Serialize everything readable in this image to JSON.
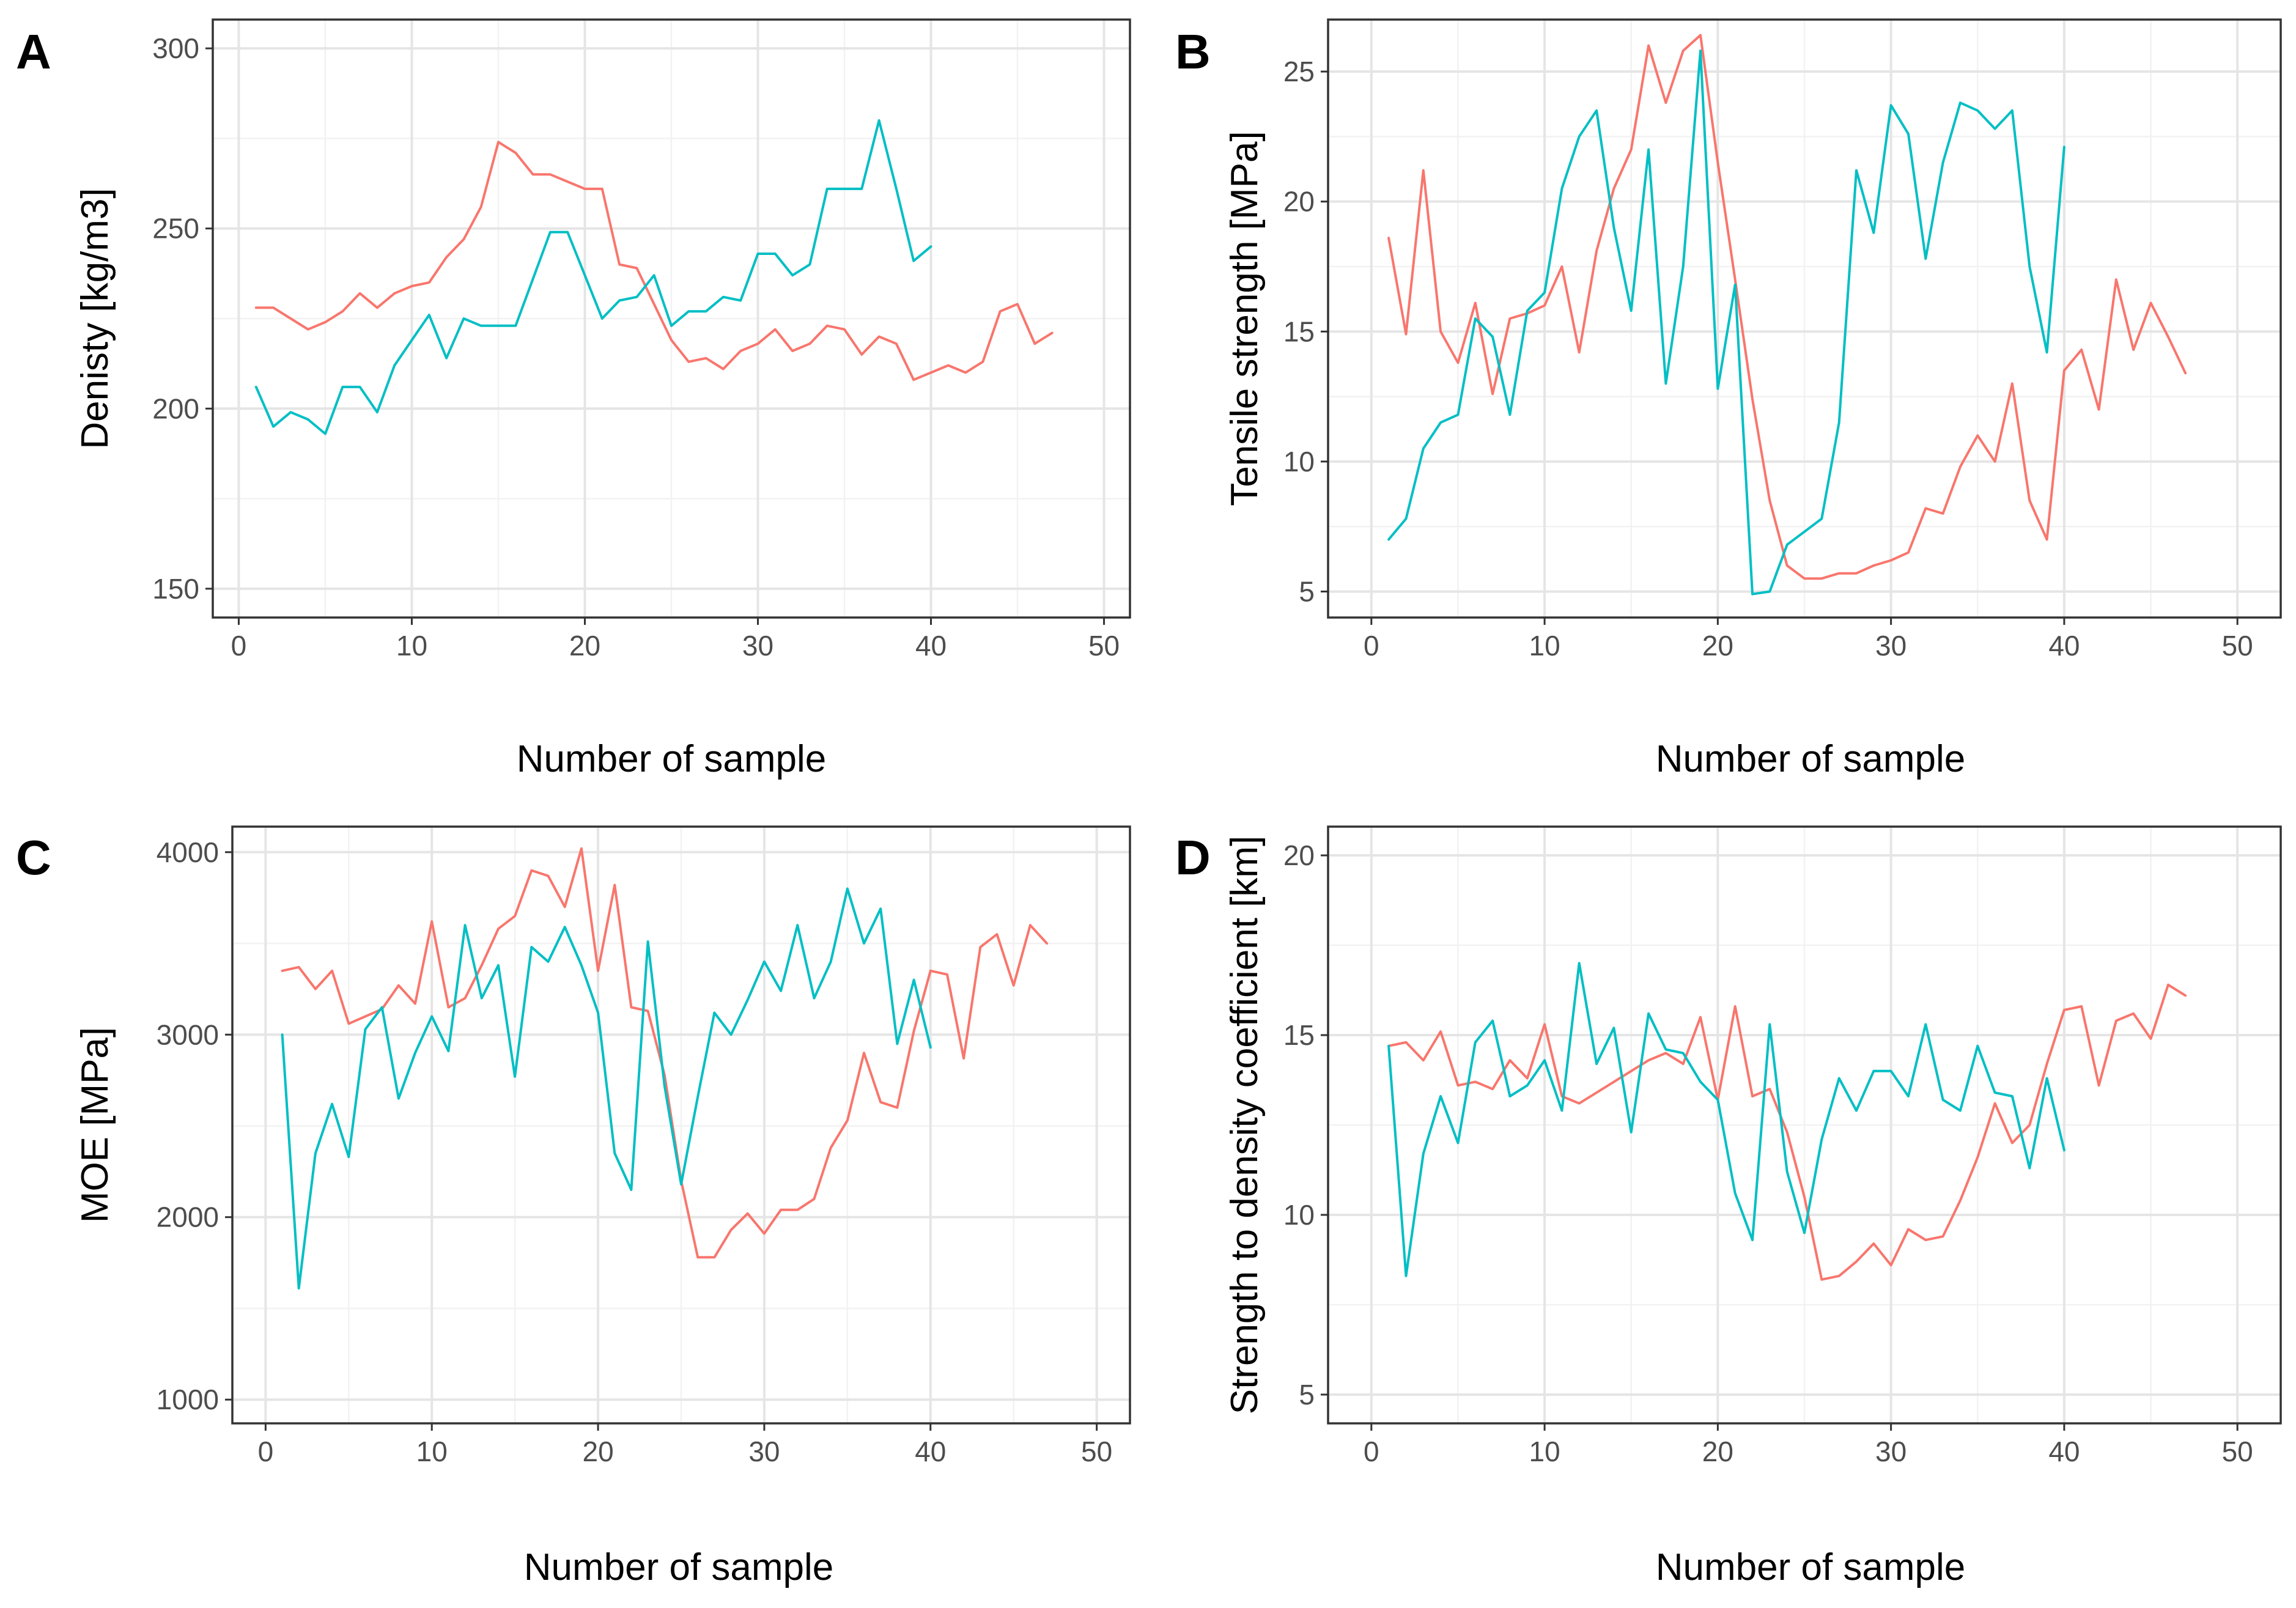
{
  "colors": {
    "series1": "#F8766D",
    "series2": "#00BFC4"
  },
  "chart_data": [
    {
      "panel": "A",
      "type": "line",
      "xlabel": "Number of sample",
      "ylabel": "Denisty [kg/m3]",
      "xlim": [
        -1.5,
        51.5
      ],
      "ylim": [
        142,
        308
      ],
      "xticks": [
        0,
        10,
        20,
        30,
        40,
        50
      ],
      "yticks": [
        150,
        200,
        250,
        300
      ],
      "series": [
        {
          "name": "series1",
          "x": [
            1,
            2,
            3,
            4,
            5,
            6,
            7,
            8,
            9,
            10,
            11,
            12,
            13,
            14,
            15,
            16,
            17,
            18,
            19,
            20,
            21,
            22,
            23,
            24,
            25,
            26,
            27,
            28,
            29,
            30,
            31,
            32,
            33,
            34,
            35,
            36,
            37,
            38,
            39,
            40,
            41,
            42,
            43,
            44,
            45,
            46,
            47
          ],
          "values": [
            228,
            228,
            225,
            222,
            224,
            227,
            232,
            228,
            232,
            234,
            235,
            242,
            247,
            256,
            274,
            271,
            265,
            265,
            263,
            261,
            261,
            240,
            239,
            229,
            219,
            213,
            214,
            211,
            216,
            218,
            222,
            216,
            218,
            223,
            222,
            215,
            220,
            218,
            208,
            210,
            212,
            210,
            213,
            227,
            229,
            218,
            221
          ]
        },
        {
          "name": "series2",
          "x": [
            1,
            2,
            3,
            4,
            5,
            6,
            7,
            8,
            9,
            10,
            11,
            12,
            13,
            14,
            15,
            16,
            17,
            18,
            19,
            20,
            21,
            22,
            23,
            24,
            25,
            26,
            27,
            28,
            29,
            30,
            31,
            32,
            33,
            34,
            35,
            36,
            37,
            38,
            39,
            40
          ],
          "values": [
            206,
            195,
            199,
            197,
            193,
            206,
            206,
            199,
            212,
            219,
            226,
            214,
            225,
            223,
            223,
            223,
            236,
            249,
            249,
            237,
            225,
            230,
            231,
            237,
            223,
            227,
            227,
            231,
            230,
            243,
            243,
            237,
            240,
            261,
            261,
            261,
            280,
            261,
            241,
            245
          ]
        }
      ]
    },
    {
      "panel": "B",
      "type": "line",
      "xlabel": "Number of sample",
      "ylabel": "Tensile strength  [MPa]",
      "xlim": [
        -2.5,
        52.5
      ],
      "ylim": [
        4,
        27
      ],
      "xticks": [
        0,
        10,
        20,
        30,
        40,
        50
      ],
      "yticks": [
        5,
        10,
        15,
        20,
        25
      ],
      "series": [
        {
          "name": "series1",
          "x": [
            1,
            2,
            3,
            4,
            5,
            6,
            7,
            8,
            9,
            10,
            11,
            12,
            13,
            14,
            15,
            16,
            17,
            18,
            19,
            20,
            21,
            22,
            23,
            24,
            25,
            26,
            27,
            28,
            29,
            30,
            31,
            32,
            33,
            34,
            35,
            36,
            37,
            38,
            39,
            40,
            41,
            42,
            43,
            44,
            45,
            46,
            47
          ],
          "values": [
            18.6,
            14.9,
            21.2,
            15.0,
            13.8,
            16.1,
            12.6,
            15.5,
            15.7,
            16.0,
            17.5,
            14.2,
            18.1,
            20.5,
            22.0,
            26.0,
            23.8,
            25.8,
            26.4,
            21.5,
            17.0,
            12.4,
            8.5,
            6.0,
            5.5,
            5.5,
            5.7,
            5.7,
            6.0,
            6.2,
            6.5,
            8.2,
            8.0,
            9.8,
            11.0,
            10.0,
            13.0,
            8.5,
            7.0,
            13.5,
            14.3,
            12.0,
            17.0,
            14.3,
            16.1,
            14.8,
            13.4
          ]
        },
        {
          "name": "series2",
          "x": [
            1,
            2,
            3,
            4,
            5,
            6,
            7,
            8,
            9,
            10,
            11,
            12,
            13,
            14,
            15,
            16,
            17,
            18,
            19,
            20,
            21,
            22,
            23,
            24,
            25,
            26,
            27,
            28,
            29,
            30,
            31,
            32,
            33,
            34,
            35,
            36,
            37,
            38,
            39,
            40
          ],
          "values": [
            7.0,
            7.8,
            10.5,
            11.5,
            11.8,
            15.5,
            14.8,
            11.8,
            15.8,
            16.5,
            20.5,
            22.5,
            23.5,
            19.0,
            15.8,
            22.0,
            13.0,
            17.5,
            25.8,
            12.8,
            16.8,
            4.9,
            5.0,
            6.8,
            7.3,
            7.8,
            11.5,
            21.2,
            18.8,
            23.7,
            22.6,
            17.8,
            21.5,
            23.8,
            23.5,
            22.8,
            23.5,
            17.5,
            14.2,
            22.1
          ]
        }
      ]
    },
    {
      "panel": "C",
      "type": "line",
      "xlabel": "Number of sample",
      "ylabel": "MOE [MPa]",
      "xlim": [
        -2,
        52
      ],
      "ylim": [
        870,
        4140
      ],
      "xticks": [
        0,
        10,
        20,
        30,
        40,
        50
      ],
      "yticks": [
        1000,
        2000,
        3000,
        4000
      ],
      "series": [
        {
          "name": "series1",
          "x": [
            1,
            2,
            3,
            4,
            5,
            6,
            7,
            8,
            9,
            10,
            11,
            12,
            13,
            14,
            15,
            16,
            17,
            18,
            19,
            20,
            21,
            22,
            23,
            24,
            25,
            26,
            27,
            28,
            29,
            30,
            31,
            32,
            33,
            34,
            35,
            36,
            37,
            38,
            39,
            40,
            41,
            42,
            43,
            44,
            45,
            46,
            47
          ],
          "values": [
            3350,
            3370,
            3250,
            3350,
            3060,
            3100,
            3140,
            3270,
            3170,
            3620,
            3150,
            3200,
            3380,
            3580,
            3650,
            3900,
            3870,
            3700,
            4020,
            3350,
            3820,
            3150,
            3130,
            2780,
            2200,
            1780,
            1780,
            1930,
            2020,
            1910,
            2040,
            2040,
            2100,
            2380,
            2530,
            2900,
            2630,
            2600,
            3020,
            3350,
            3330,
            2870,
            3480,
            3550,
            3270,
            3600,
            3500
          ]
        },
        {
          "name": "series2",
          "x": [
            1,
            2,
            3,
            4,
            5,
            6,
            7,
            8,
            9,
            10,
            11,
            12,
            13,
            14,
            15,
            16,
            17,
            18,
            19,
            20,
            21,
            22,
            23,
            24,
            25,
            26,
            27,
            28,
            29,
            30,
            31,
            32,
            33,
            34,
            35,
            36,
            37,
            38,
            39,
            40
          ],
          "values": [
            3000,
            1610,
            2350,
            2620,
            2330,
            3030,
            3150,
            2650,
            2900,
            3100,
            2910,
            3600,
            3200,
            3380,
            2770,
            3480,
            3400,
            3590,
            3380,
            3120,
            2350,
            2150,
            3510,
            2720,
            2180,
            2660,
            3120,
            3000,
            3190,
            3400,
            3240,
            3600,
            3200,
            3400,
            3800,
            3500,
            3690,
            2950,
            3300,
            2930
          ]
        }
      ]
    },
    {
      "panel": "D",
      "type": "line",
      "xlabel": "Number of sample",
      "ylabel": "Strength to density coefficient [km]",
      "xlim": [
        -2.5,
        52.5
      ],
      "ylim": [
        4.2,
        20.8
      ],
      "xticks": [
        0,
        10,
        20,
        30,
        40,
        50
      ],
      "yticks": [
        5,
        10,
        15,
        20
      ],
      "series": [
        {
          "name": "series1",
          "x": [
            1,
            2,
            3,
            4,
            5,
            6,
            7,
            8,
            9,
            10,
            11,
            12,
            13,
            14,
            15,
            16,
            17,
            18,
            19,
            20,
            21,
            22,
            23,
            24,
            25,
            26,
            27,
            28,
            29,
            30,
            31,
            32,
            33,
            34,
            35,
            36,
            37,
            38,
            39,
            40,
            41,
            42,
            43,
            44,
            45,
            46,
            47
          ],
          "values": [
            14.7,
            14.8,
            14.3,
            15.1,
            13.6,
            13.7,
            13.5,
            14.3,
            13.8,
            15.3,
            13.3,
            13.1,
            13.4,
            13.7,
            14.0,
            14.3,
            14.5,
            14.2,
            15.5,
            13.2,
            15.8,
            13.3,
            13.5,
            12.3,
            10.5,
            8.2,
            8.3,
            8.7,
            9.2,
            8.6,
            9.6,
            9.3,
            9.4,
            10.4,
            11.6,
            13.1,
            12.0,
            12.5,
            14.2,
            15.7,
            15.8,
            13.6,
            15.4,
            15.6,
            14.9,
            16.4,
            16.1
          ]
        },
        {
          "name": "series2",
          "x": [
            1,
            2,
            3,
            4,
            5,
            6,
            7,
            8,
            9,
            10,
            11,
            12,
            13,
            14,
            15,
            16,
            17,
            18,
            19,
            20,
            21,
            22,
            23,
            24,
            25,
            26,
            27,
            28,
            29,
            30,
            31,
            32,
            33,
            34,
            35,
            36,
            37,
            38,
            39,
            40
          ],
          "values": [
            14.7,
            8.3,
            11.7,
            13.3,
            12.0,
            14.8,
            15.4,
            13.3,
            13.6,
            14.3,
            12.9,
            17.0,
            14.2,
            15.2,
            12.3,
            15.6,
            14.6,
            14.5,
            13.7,
            13.2,
            10.6,
            9.3,
            15.3,
            11.2,
            9.5,
            12.1,
            13.8,
            12.9,
            14.0,
            14.0,
            13.3,
            15.3,
            13.2,
            12.9,
            14.7,
            13.4,
            13.3,
            11.3,
            13.8,
            11.8
          ]
        }
      ]
    }
  ]
}
